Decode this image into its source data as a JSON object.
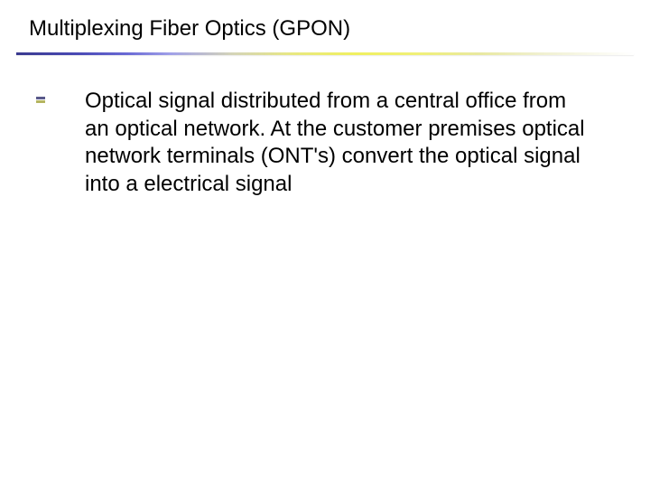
{
  "slide": {
    "title": "Multiplexing Fiber Optics (GPON)",
    "bullets": [
      {
        "text": "Optical signal distributed from a central office from an optical network. At the customer premises optical network terminals (ONT's) convert the optical signal into a electrical signal"
      }
    ]
  },
  "style": {
    "background_color": "#ffffff",
    "title_fontsize": 24,
    "title_color": "#000000",
    "body_fontsize": 24,
    "body_color": "#000000",
    "divider_gradient": [
      "#3a3a8f",
      "#6a6ad5",
      "#e8e880",
      "#ffffff"
    ],
    "bullet_top_color": "#5a5a8a",
    "bullet_bottom_color": "#b4b460",
    "font_family": "Arial"
  }
}
